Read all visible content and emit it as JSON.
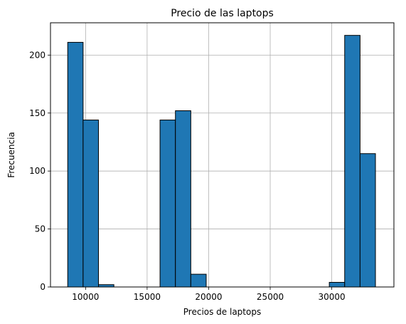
{
  "chart_data": {
    "type": "bar",
    "title": "Precio de las laptops",
    "xlabel": "Precios de laptops",
    "ylabel": "Frecuencia",
    "xlim": [
      7150,
      35050
    ],
    "ylim": [
      0,
      227.85
    ],
    "grid": true,
    "color": "#1f77b4",
    "edgecolor": "#000000",
    "xticks": [
      10000,
      15000,
      20000,
      25000,
      30000
    ],
    "yticks": [
      0,
      50,
      100,
      150,
      200
    ],
    "bins": [
      {
        "x0": 8550,
        "x1": 9800,
        "count": 211
      },
      {
        "x0": 9800,
        "x1": 11050,
        "count": 144
      },
      {
        "x0": 11050,
        "x1": 12300,
        "count": 2
      },
      {
        "x0": 12300,
        "x1": 13550,
        "count": 0
      },
      {
        "x0": 13550,
        "x1": 14800,
        "count": 0
      },
      {
        "x0": 14800,
        "x1": 16050,
        "count": 0
      },
      {
        "x0": 16050,
        "x1": 17300,
        "count": 144
      },
      {
        "x0": 17300,
        "x1": 18550,
        "count": 152
      },
      {
        "x0": 18550,
        "x1": 19800,
        "count": 11
      },
      {
        "x0": 19800,
        "x1": 21050,
        "count": 0
      },
      {
        "x0": 21050,
        "x1": 22300,
        "count": 0
      },
      {
        "x0": 22300,
        "x1": 23550,
        "count": 0
      },
      {
        "x0": 23550,
        "x1": 24800,
        "count": 0
      },
      {
        "x0": 24800,
        "x1": 26050,
        "count": 0
      },
      {
        "x0": 26050,
        "x1": 27300,
        "count": 0
      },
      {
        "x0": 27300,
        "x1": 28550,
        "count": 0
      },
      {
        "x0": 28550,
        "x1": 29800,
        "count": 0
      },
      {
        "x0": 29800,
        "x1": 31050,
        "count": 4
      },
      {
        "x0": 31050,
        "x1": 32300,
        "count": 217
      },
      {
        "x0": 32300,
        "x1": 33550,
        "count": 115
      }
    ]
  }
}
